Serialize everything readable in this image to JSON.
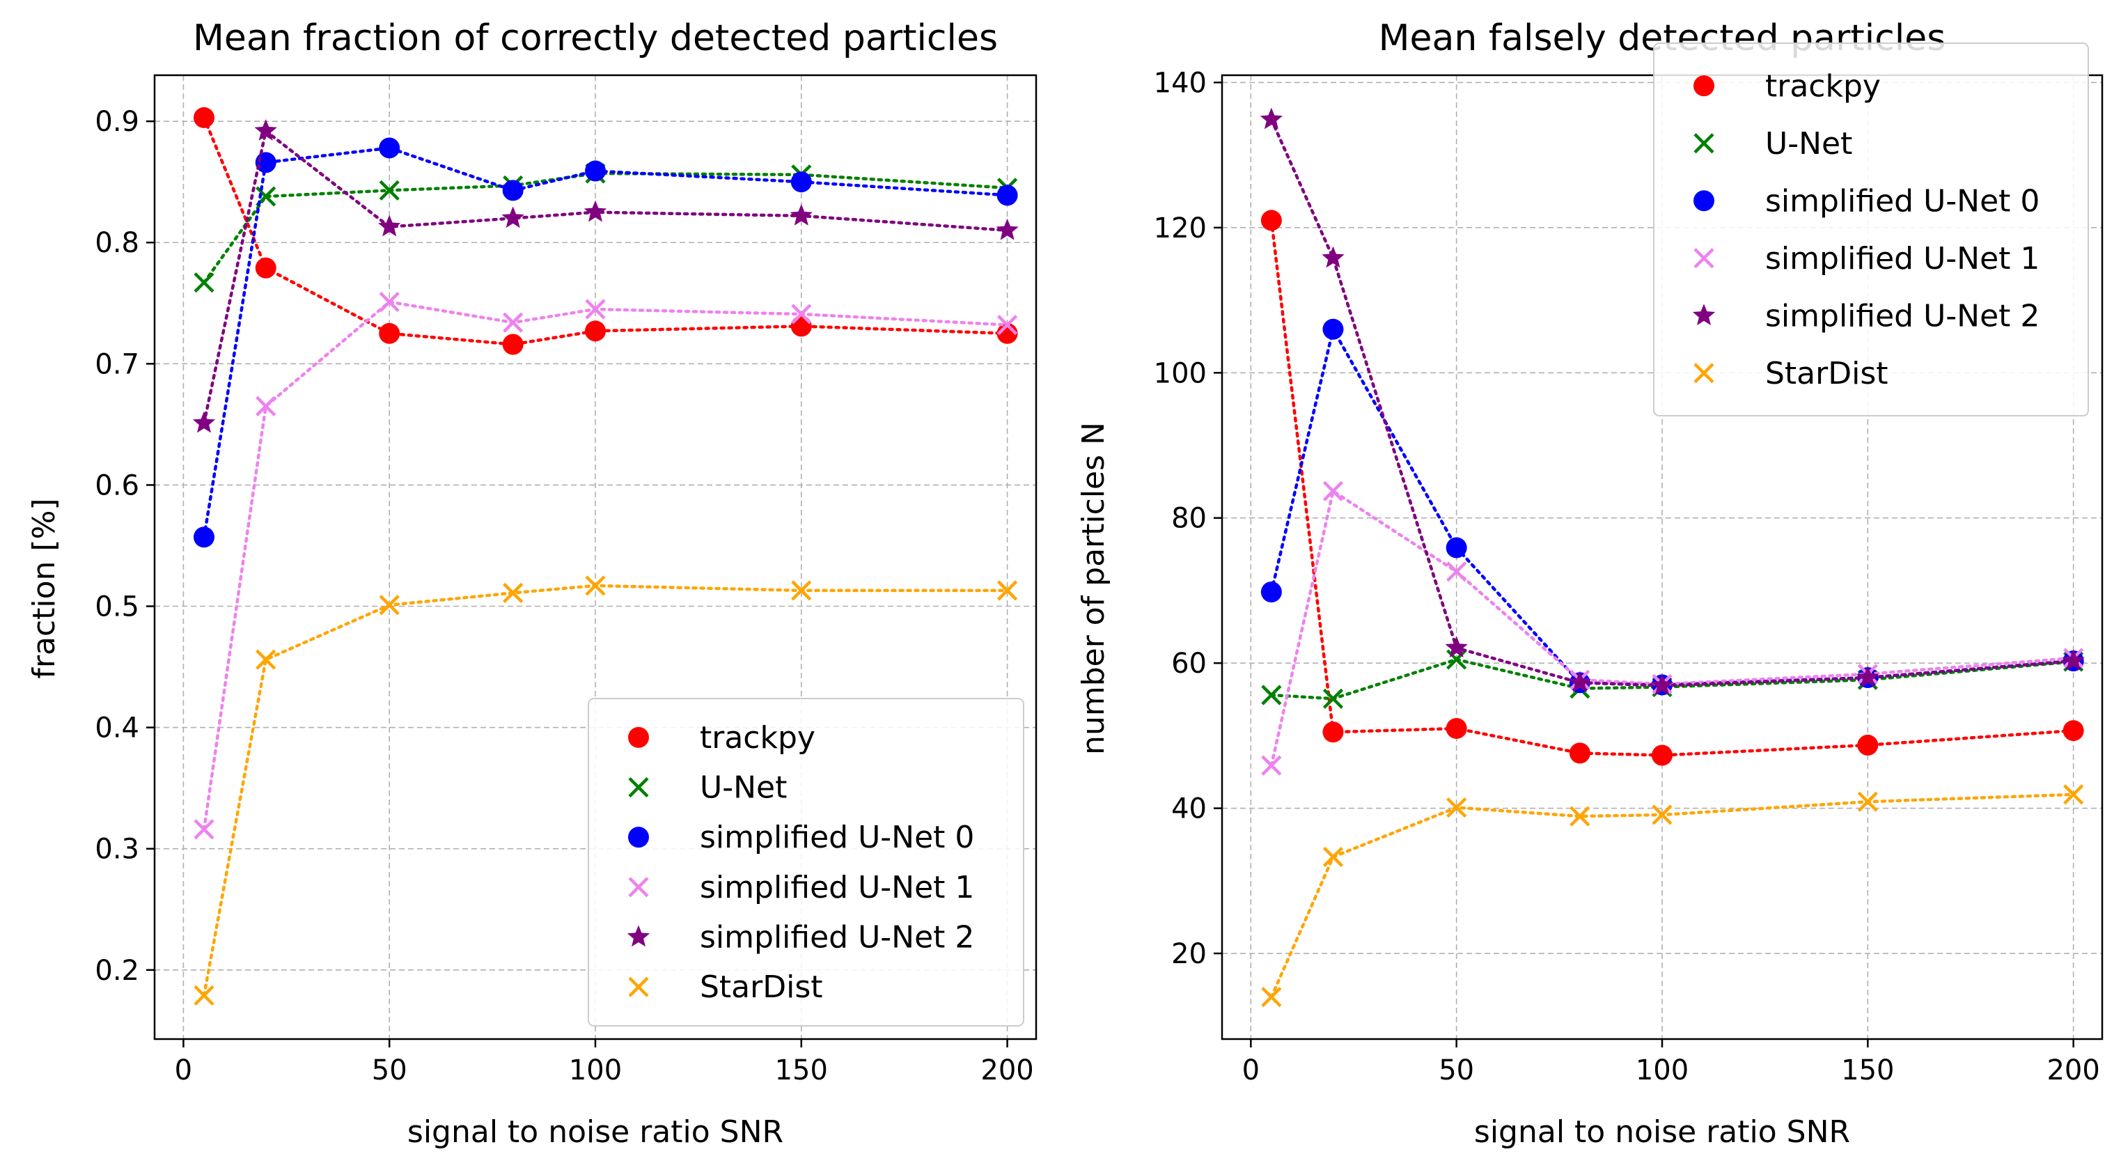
{
  "chart_data": [
    {
      "type": "scatter",
      "title": "Mean fraction of correctly detected particles",
      "xlabel": "signal to noise ratio SNR",
      "ylabel": "fraction [%]",
      "xlim": [
        -7,
        207
      ],
      "ylim": [
        0.143,
        0.938
      ],
      "xticks": [
        0,
        50,
        100,
        150,
        200
      ],
      "xtick_labels": [
        "0",
        "50",
        "100",
        "150",
        "200"
      ],
      "yticks": [
        0.2,
        0.3,
        0.4,
        0.5,
        0.6,
        0.7,
        0.8,
        0.9
      ],
      "ytick_labels": [
        "0.2",
        "0.3",
        "0.4",
        "0.5",
        "0.6",
        "0.7",
        "0.8",
        "0.9"
      ],
      "grid": true,
      "legend_position": "lower-right",
      "x": [
        5,
        20,
        50,
        80,
        100,
        150,
        200
      ],
      "series": [
        {
          "name": "trackpy",
          "color": "#ff0000",
          "marker": "circle",
          "values": [
            0.903,
            0.779,
            0.725,
            0.716,
            0.727,
            0.731,
            0.725
          ]
        },
        {
          "name": "U-Net",
          "color": "#008000",
          "marker": "x",
          "values": [
            0.767,
            0.838,
            0.843,
            0.847,
            0.857,
            0.856,
            0.845
          ]
        },
        {
          "name": "simplified U-Net 0",
          "color": "#0000ff",
          "marker": "circle",
          "values": [
            0.557,
            0.866,
            0.878,
            0.843,
            0.859,
            0.85,
            0.839
          ]
        },
        {
          "name": "simplified U-Net 1",
          "color": "#ee82ee",
          "marker": "x",
          "values": [
            0.316,
            0.665,
            0.751,
            0.734,
            0.745,
            0.741,
            0.732
          ]
        },
        {
          "name": "simplified U-Net 2",
          "color": "#800080",
          "marker": "star",
          "values": [
            0.651,
            0.892,
            0.813,
            0.82,
            0.825,
            0.822,
            0.81
          ]
        },
        {
          "name": "StarDist",
          "color": "#ffa500",
          "marker": "x",
          "values": [
            0.179,
            0.456,
            0.501,
            0.511,
            0.517,
            0.513,
            0.513
          ]
        }
      ]
    },
    {
      "type": "scatter",
      "title": "Mean falsely detected particles",
      "xlabel": "signal to noise ratio SNR",
      "ylabel": "number of particles N",
      "xlim": [
        -7,
        207
      ],
      "ylim": [
        8.2,
        141
      ],
      "xticks": [
        0,
        50,
        100,
        150,
        200
      ],
      "xtick_labels": [
        "0",
        "50",
        "100",
        "150",
        "200"
      ],
      "yticks": [
        20,
        40,
        60,
        80,
        100,
        120,
        140
      ],
      "ytick_labels": [
        "20",
        "40",
        "60",
        "80",
        "100",
        "120",
        "140"
      ],
      "grid": true,
      "legend_position": "upper-right",
      "x": [
        5,
        20,
        50,
        80,
        100,
        150,
        200
      ],
      "series": [
        {
          "name": "trackpy",
          "color": "#ff0000",
          "marker": "circle",
          "values": [
            121,
            50.5,
            51,
            47.6,
            47.3,
            48.7,
            50.7
          ]
        },
        {
          "name": "U-Net",
          "color": "#008000",
          "marker": "x",
          "values": [
            55.6,
            55.1,
            60.5,
            56.5,
            56.7,
            57.7,
            60.2
          ]
        },
        {
          "name": "simplified U-Net 0",
          "color": "#0000ff",
          "marker": "circle",
          "values": [
            69.8,
            106,
            75.9,
            57.3,
            57,
            58,
            60.3
          ]
        },
        {
          "name": "simplified U-Net 1",
          "color": "#ee82ee",
          "marker": "x",
          "values": [
            45.9,
            83.7,
            72.6,
            57.7,
            57.1,
            58.5,
            60.7
          ]
        },
        {
          "name": "simplified U-Net 2",
          "color": "#800080",
          "marker": "star",
          "values": [
            134.9,
            115.8,
            62.1,
            57.3,
            56.9,
            58,
            60.3
          ]
        },
        {
          "name": "StarDist",
          "color": "#ffa500",
          "marker": "x",
          "values": [
            14,
            33.3,
            40.1,
            38.9,
            39.1,
            40.9,
            41.9
          ]
        }
      ]
    }
  ]
}
